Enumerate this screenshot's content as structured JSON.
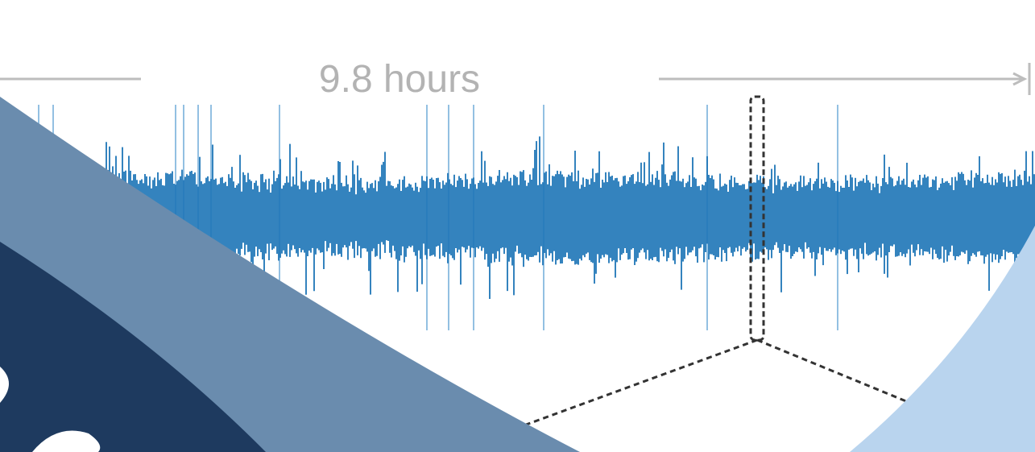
{
  "duration_label": "9.8 hours",
  "colors": {
    "waveform": "#1f76b8",
    "waveform_spike": "#5a9fd4",
    "arrow": "#bdbdbd",
    "duration_text": "#b3b3b3",
    "selection_outline": "#333333",
    "shape_mid_blue": "#6a8cae",
    "shape_dark_navy": "#1e3a5f",
    "shape_light_blue": "#b9d4ee",
    "shape_white": "#ffffff"
  }
}
